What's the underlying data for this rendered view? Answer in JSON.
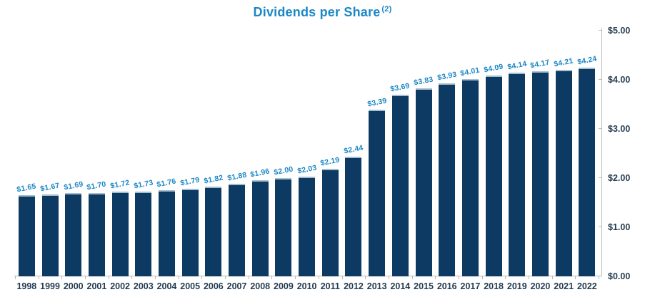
{
  "title": {
    "text": "Dividends per Share",
    "superscript": "(2)"
  },
  "colors": {
    "accent": "#1b87c6",
    "bar": "#0d3a63",
    "bar_cap": "#a3becf",
    "axis": "#b4bbc1",
    "tick_text": "#253c50",
    "background": "#ffffff"
  },
  "chart_data": {
    "type": "bar",
    "title": "Dividends per Share (2)",
    "categories": [
      "1998",
      "1999",
      "2000",
      "2001",
      "2002",
      "2003",
      "2004",
      "2005",
      "2006",
      "2007",
      "2008",
      "2009",
      "2010",
      "2011",
      "2012",
      "2013",
      "2014",
      "2015",
      "2016",
      "2017",
      "2018",
      "2019",
      "2020",
      "2021",
      "2022"
    ],
    "values": [
      1.65,
      1.67,
      1.69,
      1.7,
      1.72,
      1.73,
      1.76,
      1.79,
      1.82,
      1.88,
      1.96,
      2.0,
      2.03,
      2.19,
      2.44,
      3.39,
      3.69,
      3.83,
      3.93,
      4.01,
      4.09,
      4.14,
      4.17,
      4.21,
      4.24
    ],
    "value_labels": [
      "$1.65",
      "$1.67",
      "$1.69",
      "$1.70",
      "$1.72",
      "$1.73",
      "$1.76",
      "$1.79",
      "$1.82",
      "$1.88",
      "$1.96",
      "$2.00",
      "$2.03",
      "$2.19",
      "$2.44",
      "$3.39",
      "$3.69",
      "$3.83",
      "$3.93",
      "$4.01",
      "$4.09",
      "$4.14",
      "$4.17",
      "$4.21",
      "$4.24"
    ],
    "xlabel": "",
    "ylabel": "",
    "ylim": [
      0,
      5
    ],
    "ytick_labels": [
      "$0.00",
      "$1.00",
      "$2.00",
      "$3.00",
      "$4.00",
      "$5.00"
    ],
    "y_axis_position": "right",
    "grid": false,
    "legend": false
  }
}
